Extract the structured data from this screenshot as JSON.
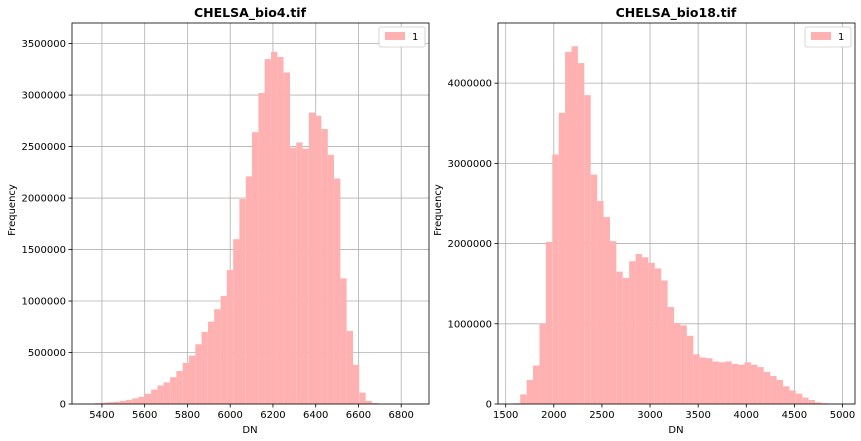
{
  "colors": {
    "bar": "#ffb0b0",
    "grid": "#b0b0b0",
    "axis": "#000000",
    "background": "#ffffff"
  },
  "chart_data": [
    {
      "type": "bar",
      "title": "CHELSA_bio4.tif",
      "xlabel": "DN",
      "ylabel": "Frequency",
      "legend": {
        "label": "1",
        "placement": "top-right"
      },
      "grid": true,
      "xlim": [
        5260,
        6930
      ],
      "ylim": [
        0,
        3700000
      ],
      "xticks": [
        5400,
        5600,
        5800,
        6000,
        6200,
        6400,
        6600,
        6800
      ],
      "yticks": [
        0,
        500000,
        1000000,
        1500000,
        2000000,
        2500000,
        3000000,
        3500000
      ],
      "bin_width": 29.5,
      "bins": [
        {
          "x": 5335,
          "y": 5000
        },
        {
          "x": 5365,
          "y": 8000
        },
        {
          "x": 5394,
          "y": 12000
        },
        {
          "x": 5424,
          "y": 17000
        },
        {
          "x": 5453,
          "y": 22000
        },
        {
          "x": 5483,
          "y": 30000
        },
        {
          "x": 5512,
          "y": 40000
        },
        {
          "x": 5542,
          "y": 55000
        },
        {
          "x": 5571,
          "y": 70000
        },
        {
          "x": 5601,
          "y": 100000
        },
        {
          "x": 5630,
          "y": 140000
        },
        {
          "x": 5660,
          "y": 180000
        },
        {
          "x": 5689,
          "y": 210000
        },
        {
          "x": 5719,
          "y": 260000
        },
        {
          "x": 5748,
          "y": 320000
        },
        {
          "x": 5778,
          "y": 400000
        },
        {
          "x": 5807,
          "y": 470000
        },
        {
          "x": 5837,
          "y": 580000
        },
        {
          "x": 5866,
          "y": 700000
        },
        {
          "x": 5896,
          "y": 800000
        },
        {
          "x": 5925,
          "y": 920000
        },
        {
          "x": 5955,
          "y": 1050000
        },
        {
          "x": 5984,
          "y": 1300000
        },
        {
          "x": 6014,
          "y": 1600000
        },
        {
          "x": 6043,
          "y": 1990000
        },
        {
          "x": 6073,
          "y": 2210000
        },
        {
          "x": 6102,
          "y": 2640000
        },
        {
          "x": 6132,
          "y": 3020000
        },
        {
          "x": 6161,
          "y": 3350000
        },
        {
          "x": 6191,
          "y": 3420000
        },
        {
          "x": 6220,
          "y": 3370000
        },
        {
          "x": 6250,
          "y": 3220000
        },
        {
          "x": 6279,
          "y": 2490000
        },
        {
          "x": 6309,
          "y": 2540000
        },
        {
          "x": 6338,
          "y": 2480000
        },
        {
          "x": 6368,
          "y": 2830000
        },
        {
          "x": 6397,
          "y": 2800000
        },
        {
          "x": 6427,
          "y": 2670000
        },
        {
          "x": 6456,
          "y": 2420000
        },
        {
          "x": 6486,
          "y": 2190000
        },
        {
          "x": 6515,
          "y": 1220000
        },
        {
          "x": 6545,
          "y": 710000
        },
        {
          "x": 6574,
          "y": 380000
        },
        {
          "x": 6604,
          "y": 110000
        },
        {
          "x": 6633,
          "y": 30000
        },
        {
          "x": 6663,
          "y": 10000
        },
        {
          "x": 6692,
          "y": 0
        },
        {
          "x": 6722,
          "y": 0
        },
        {
          "x": 6751,
          "y": 0
        },
        {
          "x": 6781,
          "y": 0
        }
      ]
    },
    {
      "type": "bar",
      "title": "CHELSA_bio18.tif",
      "xlabel": "DN",
      "ylabel": "Frequency",
      "legend": {
        "label": "1",
        "placement": "top-right"
      },
      "grid": true,
      "xlim": [
        1420,
        5130
      ],
      "ylim": [
        0,
        4750000
      ],
      "xticks": [
        1500,
        2000,
        2500,
        3000,
        3500,
        4000,
        4500,
        5000
      ],
      "yticks": [
        0,
        1000000,
        2000000,
        3000000,
        4000000
      ],
      "bin_width": 66.6,
      "bins": [
        {
          "x": 1584,
          "y": 10000
        },
        {
          "x": 1651,
          "y": 120000
        },
        {
          "x": 1718,
          "y": 300000
        },
        {
          "x": 1784,
          "y": 480000
        },
        {
          "x": 1851,
          "y": 1000000
        },
        {
          "x": 1917,
          "y": 2020000
        },
        {
          "x": 1984,
          "y": 3110000
        },
        {
          "x": 2051,
          "y": 3630000
        },
        {
          "x": 2117,
          "y": 4390000
        },
        {
          "x": 2184,
          "y": 4460000
        },
        {
          "x": 2250,
          "y": 4250000
        },
        {
          "x": 2317,
          "y": 3850000
        },
        {
          "x": 2384,
          "y": 2860000
        },
        {
          "x": 2450,
          "y": 2530000
        },
        {
          "x": 2517,
          "y": 2330000
        },
        {
          "x": 2583,
          "y": 2030000
        },
        {
          "x": 2650,
          "y": 1650000
        },
        {
          "x": 2717,
          "y": 1570000
        },
        {
          "x": 2783,
          "y": 1780000
        },
        {
          "x": 2850,
          "y": 1870000
        },
        {
          "x": 2916,
          "y": 1830000
        },
        {
          "x": 2983,
          "y": 1760000
        },
        {
          "x": 3050,
          "y": 1690000
        },
        {
          "x": 3116,
          "y": 1540000
        },
        {
          "x": 3183,
          "y": 1210000
        },
        {
          "x": 3249,
          "y": 1010000
        },
        {
          "x": 3316,
          "y": 980000
        },
        {
          "x": 3383,
          "y": 850000
        },
        {
          "x": 3449,
          "y": 620000
        },
        {
          "x": 3516,
          "y": 580000
        },
        {
          "x": 3582,
          "y": 570000
        },
        {
          "x": 3649,
          "y": 530000
        },
        {
          "x": 3716,
          "y": 520000
        },
        {
          "x": 3782,
          "y": 530000
        },
        {
          "x": 3849,
          "y": 500000
        },
        {
          "x": 3915,
          "y": 490000
        },
        {
          "x": 3982,
          "y": 520000
        },
        {
          "x": 4049,
          "y": 490000
        },
        {
          "x": 4115,
          "y": 460000
        },
        {
          "x": 4182,
          "y": 400000
        },
        {
          "x": 4248,
          "y": 350000
        },
        {
          "x": 4315,
          "y": 300000
        },
        {
          "x": 4382,
          "y": 220000
        },
        {
          "x": 4448,
          "y": 170000
        },
        {
          "x": 4515,
          "y": 130000
        },
        {
          "x": 4581,
          "y": 80000
        },
        {
          "x": 4648,
          "y": 50000
        },
        {
          "x": 4714,
          "y": 20000
        },
        {
          "x": 4781,
          "y": 10000
        },
        {
          "x": 4848,
          "y": 2000
        }
      ]
    }
  ]
}
